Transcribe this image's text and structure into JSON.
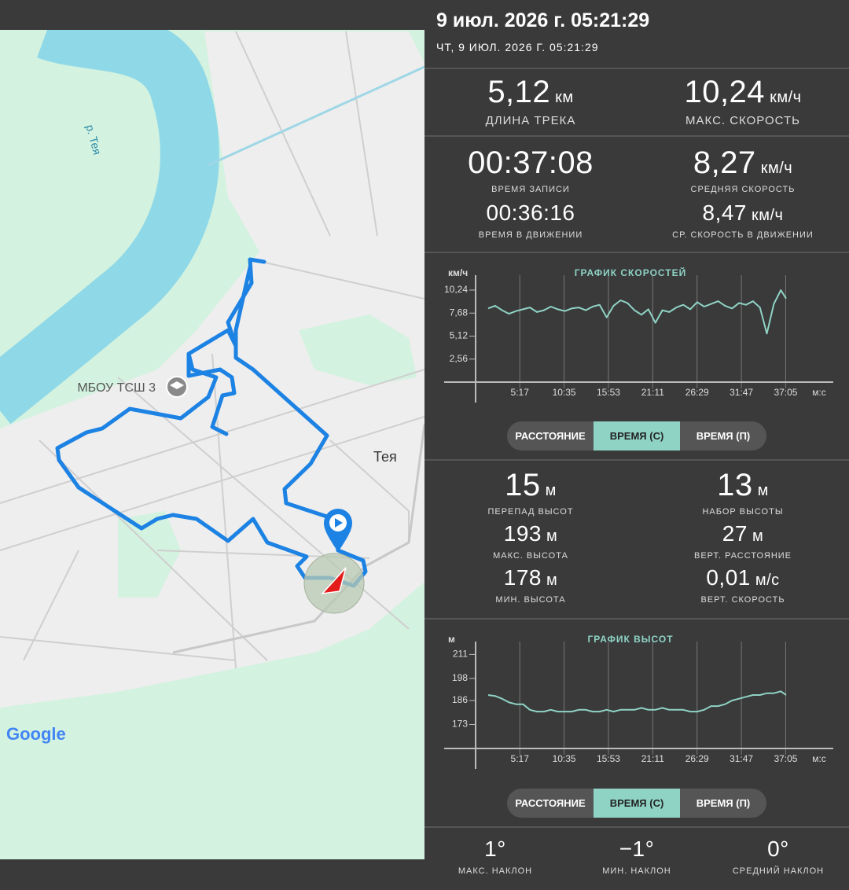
{
  "header": {
    "title": "9 июл. 2026 г. 05:21:29",
    "subtitle": "ЧТ, 9 ИЮЛ. 2026 Г. 05:21:29"
  },
  "map": {
    "river_label": "р. Тея",
    "poi_label": "МБОУ ТСШ 3",
    "place_label": "Тея",
    "attribution": "Google"
  },
  "stats_track": [
    {
      "value": "5,12",
      "unit": "км",
      "label": "ДЛИНА ТРЕКА"
    },
    {
      "value": "10,24",
      "unit": "км/ч",
      "label": "МАКС. СКОРОСТЬ"
    }
  ],
  "stats_time": [
    {
      "value": "00:37:08",
      "label": "ВРЕМЯ ЗАПИСИ"
    },
    {
      "value": "8,27",
      "unit": "км/ч",
      "label": "СРЕДНЯЯ СКОРОСТЬ"
    },
    {
      "value": "00:36:16",
      "label": "ВРЕМЯ В ДВИЖЕНИИ"
    },
    {
      "value": "8,47",
      "unit": "км/ч",
      "label": "СР. СКОРОСТЬ В ДВИЖЕНИИ"
    }
  ],
  "tabs_speed": [
    "РАССТОЯНИЕ",
    "ВРЕМЯ (С)",
    "ВРЕМЯ (П)"
  ],
  "stats_elevation": [
    {
      "value": "15",
      "unit": "м",
      "label": "ПЕРЕПАД ВЫСОТ"
    },
    {
      "value": "13",
      "unit": "м",
      "label": "НАБОР ВЫСОТЫ"
    },
    {
      "value": "193",
      "unit": "м",
      "label": "МАКС. ВЫСОТА"
    },
    {
      "value": "27",
      "unit": "м",
      "label": "ВЕРТ. РАССТОЯНИЕ"
    },
    {
      "value": "178",
      "unit": "м",
      "label": "МИН. ВЫСОТА"
    },
    {
      "value": "0,01",
      "unit": "м/с",
      "label": "ВЕРТ. СКОРОСТЬ"
    }
  ],
  "tabs_elevation": [
    "РАССТОЯНИЕ",
    "ВРЕМЯ (С)",
    "ВРЕМЯ (П)"
  ],
  "stats_slope": [
    {
      "value": "1°",
      "label": "МАКС. НАКЛОН"
    },
    {
      "value": "−1°",
      "label": "МИН. НАКЛОН"
    },
    {
      "value": "0°",
      "label": "СРЕДНИЙ НАКЛОН"
    }
  ],
  "chart_data": [
    {
      "type": "line",
      "title": "ГРАФИК СКОРОСТЕЙ",
      "ylabel": "км/ч",
      "xlabel": "м:с",
      "color": "#8fd3c5",
      "x": [
        90,
        140,
        190,
        240,
        290,
        340,
        390,
        440,
        490,
        540,
        590,
        640,
        690,
        740,
        790,
        840,
        890,
        940,
        990,
        1040,
        1090,
        1140,
        1190,
        1240,
        1290,
        1340,
        1390,
        1440,
        1490,
        1540,
        1590,
        1640,
        1690,
        1740,
        1790,
        1840,
        1890,
        1940,
        1990,
        2040,
        2090,
        2140,
        2190,
        2228
      ],
      "values": [
        8.2,
        8.5,
        8.0,
        7.6,
        7.9,
        8.1,
        8.3,
        7.8,
        8.0,
        8.4,
        8.1,
        7.9,
        8.2,
        8.3,
        8.0,
        8.4,
        8.6,
        7.2,
        8.5,
        9.1,
        8.8,
        8.0,
        7.5,
        8.1,
        6.6,
        8.0,
        7.8,
        8.3,
        8.6,
        8.1,
        8.9,
        8.4,
        8.7,
        9.0,
        8.5,
        8.2,
        8.8,
        8.6,
        9.0,
        8.3,
        5.4,
        8.7,
        10.24,
        9.3
      ],
      "xlim": [
        0,
        2228
      ],
      "ylim": [
        0,
        11.9
      ],
      "xticks": [
        {
          "value": 317,
          "label": "5:17"
        },
        {
          "value": 635,
          "label": "10:35"
        },
        {
          "value": 953,
          "label": "15:53"
        },
        {
          "value": 1271,
          "label": "21:11"
        },
        {
          "value": 1589,
          "label": "26:29"
        },
        {
          "value": 1907,
          "label": "31:47"
        },
        {
          "value": 2225,
          "label": "37:05"
        }
      ],
      "yticks": [
        {
          "value": 2.56,
          "label": "2,56"
        },
        {
          "value": 5.12,
          "label": "5,12"
        },
        {
          "value": 7.68,
          "label": "7,68"
        },
        {
          "value": 10.24,
          "label": "10,24"
        }
      ]
    },
    {
      "type": "line",
      "title": "ГРАФИК ВЫСОТ",
      "ylabel": "м",
      "xlabel": "м:с",
      "color": "#8fd3c5",
      "x": [
        90,
        140,
        190,
        240,
        290,
        340,
        390,
        440,
        490,
        540,
        590,
        640,
        690,
        740,
        790,
        840,
        890,
        940,
        990,
        1040,
        1090,
        1140,
        1190,
        1240,
        1290,
        1340,
        1390,
        1440,
        1490,
        1540,
        1590,
        1640,
        1690,
        1740,
        1790,
        1840,
        1890,
        1940,
        1990,
        2040,
        2090,
        2140,
        2190,
        2228
      ],
      "values": [
        189,
        188.5,
        187,
        185,
        184,
        184,
        181,
        180,
        180,
        181,
        180,
        180,
        180,
        181,
        181,
        180,
        180,
        181,
        180,
        181,
        181,
        181,
        182,
        181,
        181,
        182,
        181,
        181,
        181,
        180,
        180,
        181,
        183,
        183,
        184,
        186,
        187,
        188,
        189,
        189,
        190,
        190,
        191,
        189
      ],
      "xlim": [
        0,
        2228
      ],
      "ylim": [
        160,
        218
      ],
      "xticks": [
        {
          "value": 317,
          "label": "5:17"
        },
        {
          "value": 635,
          "label": "10:35"
        },
        {
          "value": 953,
          "label": "15:53"
        },
        {
          "value": 1271,
          "label": "21:11"
        },
        {
          "value": 1589,
          "label": "26:29"
        },
        {
          "value": 1907,
          "label": "31:47"
        },
        {
          "value": 2225,
          "label": "37:05"
        }
      ],
      "yticks": [
        173,
        186,
        198,
        211
      ]
    }
  ]
}
